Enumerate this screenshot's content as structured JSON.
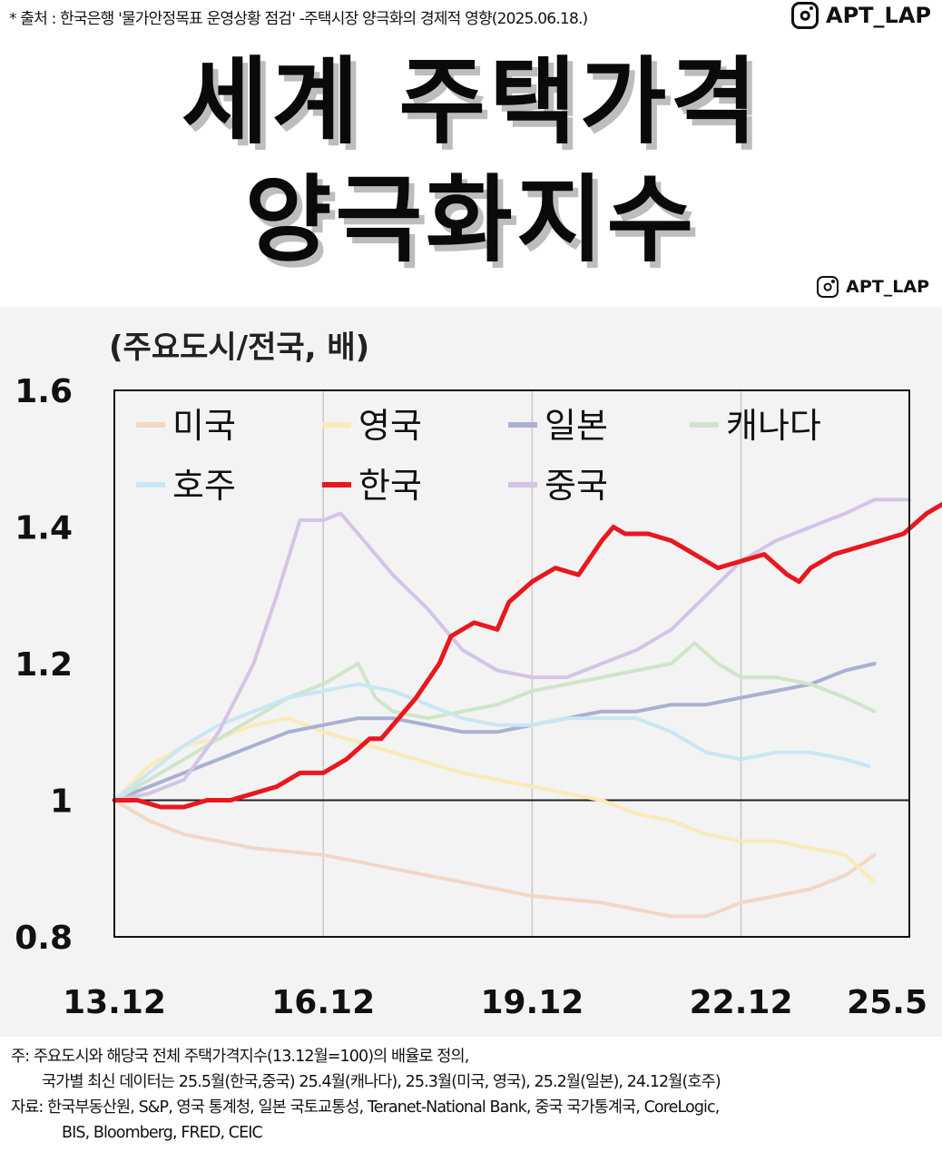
{
  "header": {
    "source_text": "* 출처 : 한국은행 '물가안정목표 운영상황 점검' -주택시장 양극화의 경제적 영향(2025.06.18.)",
    "instagram_handle": "APT_LAP",
    "title_line1": "세계 주택가격",
    "title_line2": "양극화지수"
  },
  "footer": {
    "note_line1": "주: 주요도시와 해당국 전체 주택가격지수(13.12월=100)의 배율로 정의,",
    "note_line2": "국가별 최신 데이터는 25.5월(한국,중국) 25.4월(캐나다), 25.3월(미국, 영국), 25.2월(일본), 24.12월(호주)",
    "source_line1": "자료: 한국부동산원, S&P, 영국 통계청, 일본 국토교통성, Teranet-National Bank, 중국 국가통계국, CoreLogic,",
    "source_line2": "BIS, Bloomberg, FRED, CEIC"
  },
  "chart_data": {
    "type": "line",
    "ylabel": "(주요도시/전국, 배)",
    "ylim": [
      0.8,
      1.6
    ],
    "yticks": [
      "1.6",
      "1.4",
      "1.2",
      "1",
      "0.8"
    ],
    "xlim": [
      0,
      137
    ],
    "xticks": [
      {
        "x": 0,
        "label": "13.12"
      },
      {
        "x": 36,
        "label": "16.12"
      },
      {
        "x": 72,
        "label": "19.12"
      },
      {
        "x": 108,
        "label": "22.12"
      },
      {
        "x": 137,
        "label": "25.5"
      }
    ],
    "reference_line": 1.0,
    "grid": "vertical",
    "legend_position": "top-left",
    "series": [
      {
        "name": "미국",
        "color": "#f2d7c6",
        "width": 4,
        "points": [
          [
            0,
            1.0
          ],
          [
            6,
            0.97
          ],
          [
            12,
            0.95
          ],
          [
            24,
            0.93
          ],
          [
            36,
            0.92
          ],
          [
            48,
            0.9
          ],
          [
            60,
            0.88
          ],
          [
            72,
            0.86
          ],
          [
            84,
            0.85
          ],
          [
            90,
            0.84
          ],
          [
            96,
            0.83
          ],
          [
            102,
            0.83
          ],
          [
            108,
            0.85
          ],
          [
            114,
            0.86
          ],
          [
            120,
            0.87
          ],
          [
            126,
            0.89
          ],
          [
            131,
            0.92
          ]
        ]
      },
      {
        "name": "영국",
        "color": "#fbeab6",
        "width": 4,
        "points": [
          [
            0,
            1.0
          ],
          [
            6,
            1.05
          ],
          [
            12,
            1.08
          ],
          [
            18,
            1.09
          ],
          [
            24,
            1.11
          ],
          [
            30,
            1.12
          ],
          [
            36,
            1.1
          ],
          [
            48,
            1.07
          ],
          [
            60,
            1.04
          ],
          [
            72,
            1.02
          ],
          [
            84,
            1.0
          ],
          [
            90,
            0.98
          ],
          [
            96,
            0.97
          ],
          [
            102,
            0.95
          ],
          [
            108,
            0.94
          ],
          [
            114,
            0.94
          ],
          [
            120,
            0.93
          ],
          [
            126,
            0.92
          ],
          [
            131,
            0.88
          ]
        ]
      },
      {
        "name": "일본",
        "color": "#a9b0d2",
        "width": 4,
        "points": [
          [
            0,
            1.0
          ],
          [
            6,
            1.02
          ],
          [
            12,
            1.04
          ],
          [
            18,
            1.06
          ],
          [
            24,
            1.08
          ],
          [
            30,
            1.1
          ],
          [
            36,
            1.11
          ],
          [
            42,
            1.12
          ],
          [
            48,
            1.12
          ],
          [
            54,
            1.11
          ],
          [
            60,
            1.1
          ],
          [
            66,
            1.1
          ],
          [
            72,
            1.11
          ],
          [
            78,
            1.12
          ],
          [
            84,
            1.13
          ],
          [
            90,
            1.13
          ],
          [
            96,
            1.14
          ],
          [
            102,
            1.14
          ],
          [
            108,
            1.15
          ],
          [
            114,
            1.16
          ],
          [
            120,
            1.17
          ],
          [
            126,
            1.19
          ],
          [
            131,
            1.2
          ]
        ]
      },
      {
        "name": "캐나다",
        "color": "#cfe5c9",
        "width": 4,
        "points": [
          [
            0,
            1.0
          ],
          [
            6,
            1.03
          ],
          [
            12,
            1.06
          ],
          [
            18,
            1.09
          ],
          [
            24,
            1.12
          ],
          [
            30,
            1.15
          ],
          [
            36,
            1.17
          ],
          [
            40,
            1.19
          ],
          [
            42,
            1.2
          ],
          [
            45,
            1.15
          ],
          [
            48,
            1.13
          ],
          [
            54,
            1.12
          ],
          [
            60,
            1.13
          ],
          [
            66,
            1.14
          ],
          [
            72,
            1.16
          ],
          [
            78,
            1.17
          ],
          [
            84,
            1.18
          ],
          [
            90,
            1.19
          ],
          [
            96,
            1.2
          ],
          [
            100,
            1.23
          ],
          [
            104,
            1.2
          ],
          [
            108,
            1.18
          ],
          [
            114,
            1.18
          ],
          [
            120,
            1.17
          ],
          [
            126,
            1.15
          ],
          [
            131,
            1.13
          ]
        ]
      },
      {
        "name": "호주",
        "color": "#c9e6f3",
        "width": 4,
        "points": [
          [
            0,
            1.0
          ],
          [
            6,
            1.04
          ],
          [
            12,
            1.08
          ],
          [
            18,
            1.11
          ],
          [
            24,
            1.13
          ],
          [
            30,
            1.15
          ],
          [
            36,
            1.16
          ],
          [
            42,
            1.17
          ],
          [
            48,
            1.16
          ],
          [
            54,
            1.14
          ],
          [
            60,
            1.12
          ],
          [
            66,
            1.11
          ],
          [
            72,
            1.11
          ],
          [
            78,
            1.12
          ],
          [
            84,
            1.12
          ],
          [
            90,
            1.12
          ],
          [
            96,
            1.1
          ],
          [
            102,
            1.07
          ],
          [
            108,
            1.06
          ],
          [
            114,
            1.07
          ],
          [
            120,
            1.07
          ],
          [
            126,
            1.06
          ],
          [
            130,
            1.05
          ]
        ]
      },
      {
        "name": "중국",
        "color": "#d4c4e6",
        "width": 4,
        "points": [
          [
            0,
            1.0
          ],
          [
            6,
            1.01
          ],
          [
            12,
            1.03
          ],
          [
            18,
            1.1
          ],
          [
            24,
            1.2
          ],
          [
            28,
            1.3
          ],
          [
            32,
            1.41
          ],
          [
            36,
            1.41
          ],
          [
            39,
            1.42
          ],
          [
            42,
            1.39
          ],
          [
            48,
            1.33
          ],
          [
            54,
            1.28
          ],
          [
            60,
            1.22
          ],
          [
            66,
            1.19
          ],
          [
            72,
            1.18
          ],
          [
            78,
            1.18
          ],
          [
            84,
            1.2
          ],
          [
            90,
            1.22
          ],
          [
            96,
            1.25
          ],
          [
            102,
            1.3
          ],
          [
            108,
            1.35
          ],
          [
            114,
            1.38
          ],
          [
            120,
            1.4
          ],
          [
            126,
            1.42
          ],
          [
            131,
            1.44
          ],
          [
            137,
            1.44
          ]
        ]
      },
      {
        "name": "한국",
        "color": "#e8181e",
        "width": 5,
        "points": [
          [
            0,
            1.0
          ],
          [
            4,
            1.0
          ],
          [
            8,
            0.99
          ],
          [
            12,
            0.99
          ],
          [
            16,
            1.0
          ],
          [
            20,
            1.0
          ],
          [
            24,
            1.01
          ],
          [
            28,
            1.02
          ],
          [
            32,
            1.04
          ],
          [
            36,
            1.04
          ],
          [
            40,
            1.06
          ],
          [
            44,
            1.09
          ],
          [
            46,
            1.09
          ],
          [
            48,
            1.11
          ],
          [
            52,
            1.15
          ],
          [
            56,
            1.2
          ],
          [
            58,
            1.24
          ],
          [
            60,
            1.25
          ],
          [
            62,
            1.26
          ],
          [
            66,
            1.25
          ],
          [
            68,
            1.29
          ],
          [
            72,
            1.32
          ],
          [
            76,
            1.34
          ],
          [
            80,
            1.33
          ],
          [
            84,
            1.38
          ],
          [
            86,
            1.4
          ],
          [
            88,
            1.39
          ],
          [
            92,
            1.39
          ],
          [
            96,
            1.38
          ],
          [
            100,
            1.36
          ],
          [
            104,
            1.34
          ],
          [
            108,
            1.35
          ],
          [
            112,
            1.36
          ],
          [
            116,
            1.33
          ],
          [
            118,
            1.32
          ],
          [
            120,
            1.34
          ],
          [
            124,
            1.36
          ],
          [
            128,
            1.37
          ],
          [
            132,
            1.38
          ],
          [
            136,
            1.39
          ],
          [
            140,
            1.42
          ],
          [
            144,
            1.44
          ],
          [
            146,
            1.45
          ],
          [
            148,
            1.46
          ],
          [
            151,
            1.48
          ]
        ]
      }
    ]
  }
}
